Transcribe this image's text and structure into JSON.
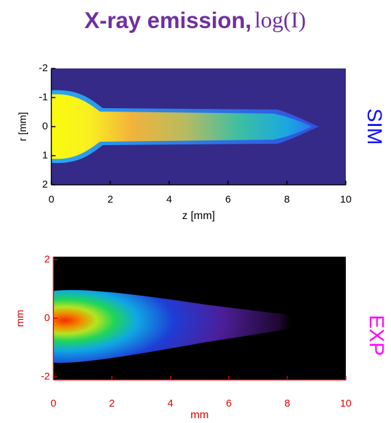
{
  "title": "X-ray emission,",
  "title_formula": "log(I)",
  "chart_data": [
    {
      "type": "image",
      "xlabel": "z [mm]",
      "ylabel": "r [mm]",
      "side_label": "SIM",
      "side_color": "#1010ff",
      "axis_color": "#000000",
      "xlim": [
        0,
        10
      ],
      "ylim": [
        2,
        -2
      ],
      "xticks": [
        0,
        2,
        4,
        6,
        8,
        10
      ],
      "yticks": [
        -2,
        -1,
        0,
        1,
        2
      ]
    },
    {
      "type": "image",
      "xlabel": "mm",
      "ylabel": "mm",
      "side_label": "EXP",
      "side_color": "#ff00ff",
      "axis_color": "#e00000",
      "xlim": [
        0,
        10
      ],
      "ylim": [
        -2.1,
        2.1
      ],
      "xticks": [
        0,
        2,
        4,
        6,
        8,
        10
      ],
      "yticks": [
        -2,
        0,
        2
      ]
    }
  ]
}
